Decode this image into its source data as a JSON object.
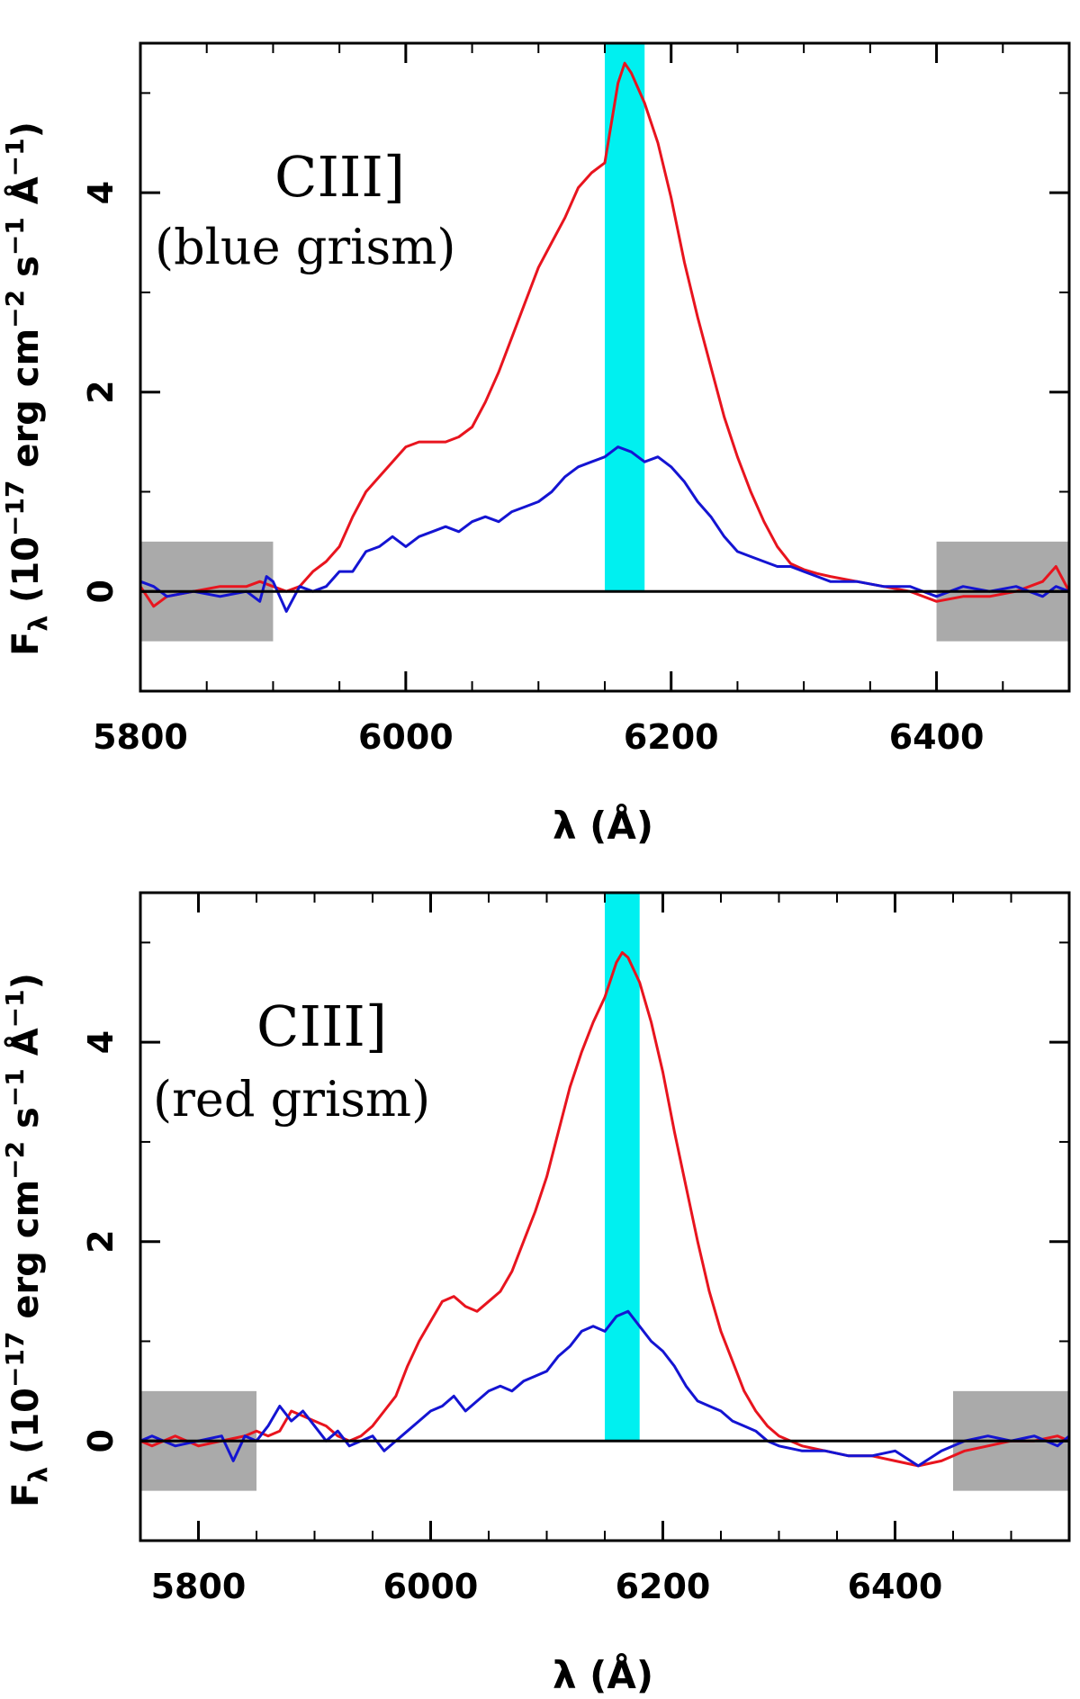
{
  "chart_data": [
    {
      "type": "line",
      "annotation": {
        "line1": "CIII]",
        "line2": "(blue grism)"
      },
      "xlabel": "λ (Å)",
      "ylabel_parts": {
        "f": "F",
        "lambda": "λ",
        "open": " (10",
        "exp1": "−17",
        "erg": " erg cm",
        "exp2": "−2",
        "s": " s",
        "exp3": "−1",
        "ang": " Å",
        "exp4": "−1",
        "close": ")"
      },
      "xlim": [
        5800,
        6500
      ],
      "ylim": [
        -1,
        5.5
      ],
      "xticks": [
        5800,
        6000,
        6200,
        6400
      ],
      "xtick_labels": [
        "5800",
        "6000",
        "6200",
        "6400"
      ],
      "yticks": [
        0,
        2,
        4
      ],
      "ytick_labels": [
        "0",
        "2",
        "4"
      ],
      "highlight_band": {
        "x0": 6150,
        "x1": 6180,
        "color": "#00f0f0"
      },
      "continuum_regions": [
        {
          "x0": 5800,
          "x1": 5900
        },
        {
          "x0": 6400,
          "x1": 6500
        }
      ],
      "zero_line": 0,
      "series": [
        {
          "name": "red",
          "color": "#e8141e",
          "x": [
            5800,
            5810,
            5820,
            5840,
            5860,
            5880,
            5890,
            5900,
            5910,
            5920,
            5930,
            5940,
            5950,
            5960,
            5970,
            5980,
            5990,
            6000,
            6010,
            6020,
            6030,
            6040,
            6050,
            6060,
            6070,
            6080,
            6090,
            6100,
            6110,
            6120,
            6130,
            6140,
            6150,
            6160,
            6165,
            6170,
            6180,
            6190,
            6200,
            6210,
            6220,
            6230,
            6240,
            6250,
            6260,
            6270,
            6280,
            6290,
            6300,
            6310,
            6320,
            6340,
            6360,
            6380,
            6400,
            6420,
            6440,
            6460,
            6480,
            6490,
            6500
          ],
          "y": [
            0.05,
            -0.15,
            -0.05,
            0.0,
            0.05,
            0.05,
            0.1,
            0.05,
            0.0,
            0.05,
            0.2,
            0.3,
            0.45,
            0.75,
            1.0,
            1.15,
            1.3,
            1.45,
            1.5,
            1.5,
            1.5,
            1.55,
            1.65,
            1.9,
            2.2,
            2.55,
            2.9,
            3.25,
            3.5,
            3.75,
            4.05,
            4.2,
            4.3,
            5.1,
            5.3,
            5.2,
            4.9,
            4.5,
            3.95,
            3.3,
            2.75,
            2.25,
            1.75,
            1.35,
            1.0,
            0.7,
            0.45,
            0.28,
            0.22,
            0.18,
            0.15,
            0.1,
            0.05,
            0.0,
            -0.1,
            -0.05,
            -0.05,
            0.0,
            0.1,
            0.25,
            0.0
          ]
        },
        {
          "name": "blue",
          "color": "#1414d2",
          "x": [
            5800,
            5810,
            5820,
            5840,
            5860,
            5880,
            5890,
            5895,
            5900,
            5910,
            5920,
            5930,
            5940,
            5950,
            5960,
            5970,
            5980,
            5990,
            6000,
            6010,
            6020,
            6030,
            6040,
            6050,
            6060,
            6070,
            6080,
            6090,
            6100,
            6110,
            6120,
            6130,
            6140,
            6150,
            6160,
            6170,
            6180,
            6190,
            6200,
            6210,
            6220,
            6230,
            6240,
            6250,
            6260,
            6270,
            6280,
            6290,
            6300,
            6310,
            6320,
            6340,
            6360,
            6380,
            6400,
            6420,
            6440,
            6460,
            6480,
            6490,
            6500
          ],
          "y": [
            0.1,
            0.05,
            -0.05,
            0.0,
            -0.05,
            0.0,
            -0.1,
            0.15,
            0.1,
            -0.2,
            0.05,
            0.0,
            0.05,
            0.2,
            0.2,
            0.4,
            0.45,
            0.55,
            0.45,
            0.55,
            0.6,
            0.65,
            0.6,
            0.7,
            0.75,
            0.7,
            0.8,
            0.85,
            0.9,
            1.0,
            1.15,
            1.25,
            1.3,
            1.35,
            1.45,
            1.4,
            1.3,
            1.35,
            1.25,
            1.1,
            0.9,
            0.75,
            0.55,
            0.4,
            0.35,
            0.3,
            0.25,
            0.25,
            0.2,
            0.15,
            0.1,
            0.1,
            0.05,
            0.05,
            -0.05,
            0.05,
            0.0,
            0.05,
            -0.05,
            0.05,
            0.0
          ]
        }
      ]
    },
    {
      "type": "line",
      "annotation": {
        "line1": "CIII]",
        "line2": "(red grism)"
      },
      "xlabel": "λ (Å)",
      "ylabel_parts": {
        "f": "F",
        "lambda": "λ",
        "open": " (10",
        "exp1": "−17",
        "erg": " erg cm",
        "exp2": "−2",
        "s": " s",
        "exp3": "−1",
        "ang": " Å",
        "exp4": "−1",
        "close": ")"
      },
      "xlim": [
        5750,
        6550
      ],
      "ylim": [
        -1,
        5.5
      ],
      "xticks": [
        5800,
        6000,
        6200,
        6400
      ],
      "xtick_labels": [
        "5800",
        "6000",
        "6200",
        "6400"
      ],
      "yticks": [
        0,
        2,
        4
      ],
      "ytick_labels": [
        "0",
        "2",
        "4"
      ],
      "highlight_band": {
        "x0": 6150,
        "x1": 6180,
        "color": "#00f0f0"
      },
      "continuum_regions": [
        {
          "x0": 5750,
          "x1": 5850
        },
        {
          "x0": 6450,
          "x1": 6550
        }
      ],
      "zero_line": 0,
      "series": [
        {
          "name": "red",
          "color": "#e8141e",
          "x": [
            5750,
            5760,
            5780,
            5800,
            5820,
            5840,
            5850,
            5860,
            5870,
            5880,
            5890,
            5900,
            5910,
            5920,
            5930,
            5940,
            5950,
            5960,
            5970,
            5980,
            5990,
            6000,
            6010,
            6020,
            6030,
            6040,
            6050,
            6060,
            6070,
            6080,
            6090,
            6100,
            6110,
            6120,
            6130,
            6140,
            6150,
            6160,
            6165,
            6170,
            6180,
            6190,
            6200,
            6210,
            6220,
            6230,
            6240,
            6250,
            6260,
            6270,
            6280,
            6290,
            6300,
            6320,
            6340,
            6360,
            6380,
            6400,
            6420,
            6440,
            6460,
            6480,
            6500,
            6520,
            6540,
            6550
          ],
          "y": [
            0.0,
            -0.05,
            0.05,
            -0.05,
            0.0,
            0.05,
            0.1,
            0.05,
            0.1,
            0.3,
            0.25,
            0.2,
            0.15,
            0.05,
            0.0,
            0.05,
            0.15,
            0.3,
            0.45,
            0.75,
            1.0,
            1.2,
            1.4,
            1.45,
            1.35,
            1.3,
            1.4,
            1.5,
            1.7,
            2.0,
            2.3,
            2.65,
            3.1,
            3.55,
            3.9,
            4.2,
            4.45,
            4.8,
            4.9,
            4.85,
            4.6,
            4.2,
            3.7,
            3.1,
            2.55,
            2.0,
            1.5,
            1.1,
            0.8,
            0.5,
            0.3,
            0.15,
            0.05,
            -0.05,
            -0.1,
            -0.15,
            -0.15,
            -0.2,
            -0.25,
            -0.2,
            -0.1,
            -0.05,
            0.0,
            0.0,
            0.05,
            0.0
          ]
        },
        {
          "name": "blue",
          "color": "#1414d2",
          "x": [
            5750,
            5760,
            5780,
            5800,
            5820,
            5830,
            5840,
            5850,
            5860,
            5870,
            5880,
            5890,
            5900,
            5910,
            5920,
            5930,
            5940,
            5950,
            5960,
            5970,
            5980,
            5990,
            6000,
            6010,
            6020,
            6030,
            6040,
            6050,
            6060,
            6070,
            6080,
            6090,
            6100,
            6110,
            6120,
            6130,
            6140,
            6150,
            6160,
            6170,
            6180,
            6190,
            6200,
            6210,
            6220,
            6230,
            6240,
            6250,
            6260,
            6270,
            6280,
            6290,
            6300,
            6320,
            6340,
            6360,
            6380,
            6400,
            6420,
            6440,
            6460,
            6480,
            6500,
            6520,
            6540,
            6550
          ],
          "y": [
            0.0,
            0.05,
            -0.05,
            0.0,
            0.05,
            -0.2,
            0.05,
            0.0,
            0.15,
            0.35,
            0.2,
            0.3,
            0.15,
            0.0,
            0.1,
            -0.05,
            0.0,
            0.05,
            -0.1,
            0.0,
            0.1,
            0.2,
            0.3,
            0.35,
            0.45,
            0.3,
            0.4,
            0.5,
            0.55,
            0.5,
            0.6,
            0.65,
            0.7,
            0.85,
            0.95,
            1.1,
            1.15,
            1.1,
            1.25,
            1.3,
            1.15,
            1.0,
            0.9,
            0.75,
            0.55,
            0.4,
            0.35,
            0.3,
            0.2,
            0.15,
            0.1,
            0.0,
            -0.05,
            -0.1,
            -0.1,
            -0.15,
            -0.15,
            -0.1,
            -0.25,
            -0.1,
            0.0,
            0.05,
            0.0,
            0.05,
            -0.05,
            0.05
          ]
        }
      ]
    }
  ]
}
